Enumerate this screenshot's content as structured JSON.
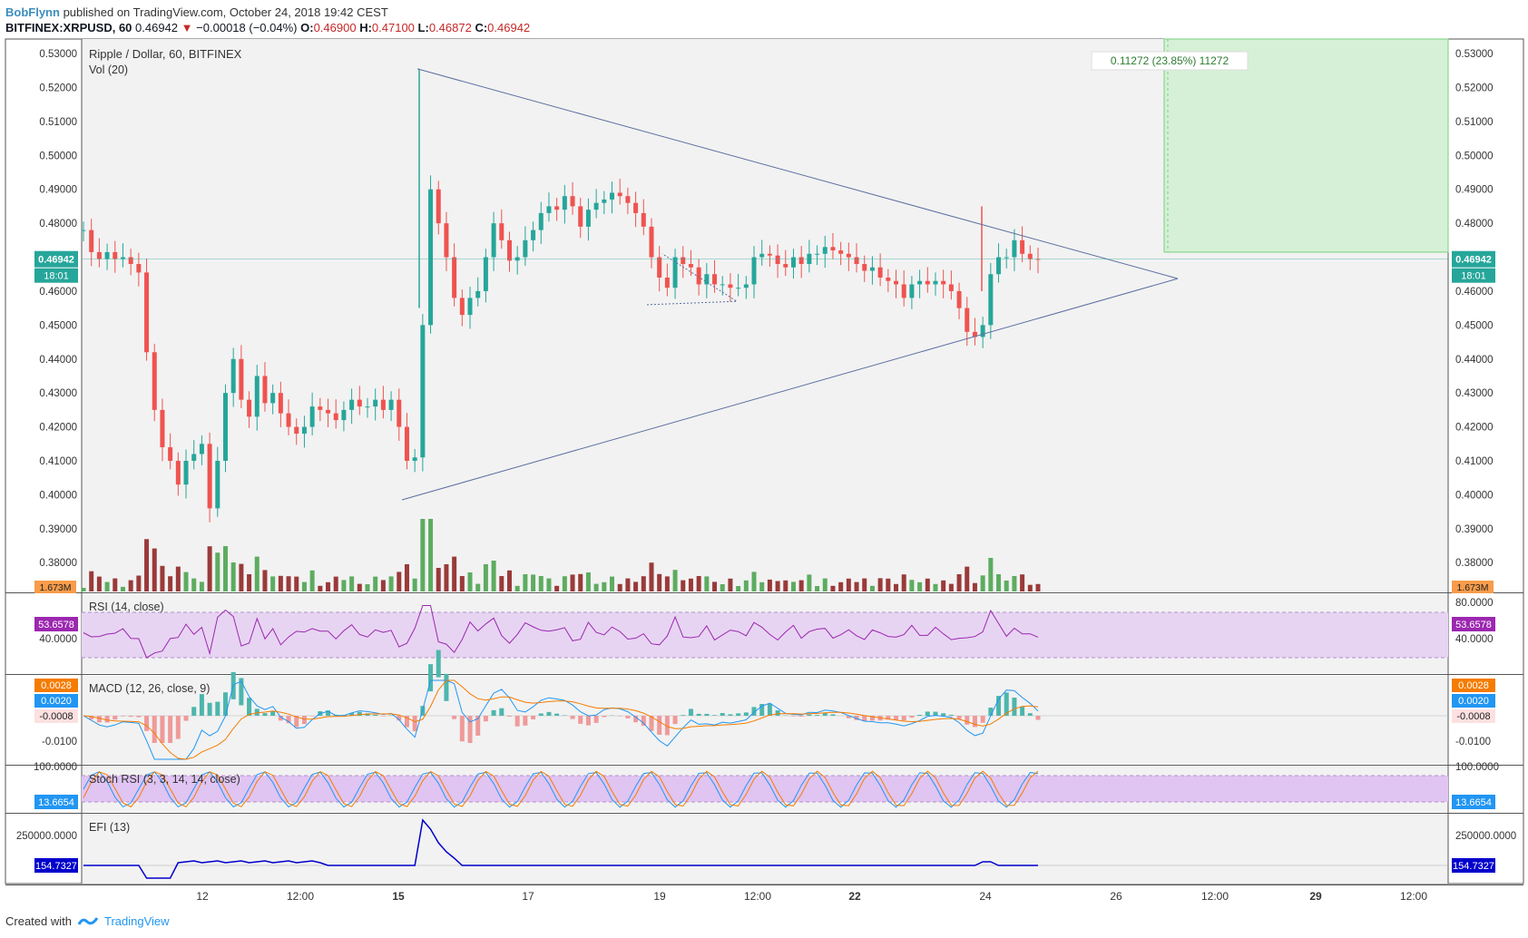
{
  "header": {
    "author": "BobFlynn",
    "published_text": "published on TradingView.com, October 24, 2018 19:42 CEST",
    "symbol": "BITFINEX:XRPUSD, 60",
    "last": "0.46942",
    "change": "−0.00018 (−0.04%)",
    "o_label": "O:",
    "o": "0.46900",
    "h_label": "H:",
    "h": "0.47100",
    "l_label": "L:",
    "l": "0.46872",
    "c_label": "C:",
    "c": "0.46942"
  },
  "footer": {
    "created_with": "Created with",
    "brand": "TradingView"
  },
  "chart_data": {
    "type": "candlestick",
    "title": "Ripple / Dollar, 60, BITFINEX",
    "price_axis": {
      "ylim": [
        0.3715,
        0.5343
      ],
      "ticks": [
        "0.53000",
        "0.52000",
        "0.51000",
        "0.50000",
        "0.49000",
        "0.48000",
        "0.47000",
        "0.46000",
        "0.45000",
        "0.44000",
        "0.43000",
        "0.42000",
        "0.41000",
        "0.40000",
        "0.39000",
        "0.38000"
      ],
      "tick_values": [
        0.53,
        0.52,
        0.51,
        0.5,
        0.49,
        0.48,
        0.47,
        0.46,
        0.45,
        0.44,
        0.43,
        0.42,
        0.41,
        0.4,
        0.39,
        0.38
      ]
    },
    "x_axis": {
      "ticks": [
        "12",
        "12:00",
        "15",
        "17",
        "19",
        "12:00",
        "22",
        "24",
        "26",
        "12:00",
        "29",
        "12:00"
      ],
      "bold_ticks": [
        "15",
        "22",
        "29"
      ]
    },
    "last_price": {
      "value": 0.46942,
      "label": "0.46942",
      "countdown": "18:01",
      "color": "#26a69a"
    },
    "close_series": [
      0.478,
      0.4715,
      0.4695,
      0.4715,
      0.4695,
      0.47,
      0.468,
      0.4655,
      0.442,
      0.425,
      0.414,
      0.41,
      0.403,
      0.41,
      0.412,
      0.415,
      0.396,
      0.41,
      0.43,
      0.44,
      0.428,
      0.423,
      0.435,
      0.427,
      0.43,
      0.424,
      0.42,
      0.418,
      0.42,
      0.426,
      0.425,
      0.424,
      0.422,
      0.425,
      0.428,
      0.426,
      0.426,
      0.428,
      0.425,
      0.428,
      0.42,
      0.41,
      0.411,
      0.45,
      0.49,
      0.48,
      0.47,
      0.458,
      0.453,
      0.458,
      0.46,
      0.47,
      0.48,
      0.475,
      0.469,
      0.47,
      0.475,
      0.478,
      0.483,
      0.485,
      0.484,
      0.488,
      0.485,
      0.479,
      0.484,
      0.486,
      0.487,
      0.489,
      0.488,
      0.486,
      0.483,
      0.479,
      0.47,
      0.464,
      0.461,
      0.47,
      0.468,
      0.467,
      0.462,
      0.465,
      0.462,
      0.462,
      0.461,
      0.461,
      0.462,
      0.47,
      0.471,
      0.4705,
      0.468,
      0.467,
      0.47,
      0.468,
      0.471,
      0.471,
      0.473,
      0.472,
      0.471,
      0.47,
      0.468,
      0.466,
      0.467,
      0.464,
      0.463,
      0.462,
      0.458,
      0.462,
      0.463,
      0.462,
      0.463,
      0.462,
      0.46,
      0.455,
      0.448,
      0.4465,
      0.45,
      0.465,
      0.47,
      0.47,
      0.475,
      0.471,
      0.4695,
      0.4694
    ],
    "vol_label": "Vol (20)",
    "volume_axis_label": "1.673M",
    "measure_box": {
      "label": "0.11272 (23.85%) 11272",
      "price_from": 0.4715,
      "price_to": 0.5343
    },
    "indicators": [
      {
        "name": "RSI (14, close)",
        "value_label": "53.6578",
        "ticks": [
          "40.0000"
        ],
        "upper_tick": "80.0000",
        "color": "#9c27b0",
        "band": [
          30,
          70
        ]
      },
      {
        "name": "MACD (12, 26, close, 9)",
        "value_labels": [
          "0.0028",
          "0.0020",
          "-0.0008"
        ],
        "ticks": [
          "-0.0100"
        ],
        "colors": [
          "#f57c00",
          "#2196f3",
          "#ef5350"
        ]
      },
      {
        "name": "Stoch RSI (3, 3, 14, 14, close)",
        "value_label": "13.6654",
        "ticks": [
          "100.0000"
        ],
        "color": "#2196f3",
        "band": [
          20,
          80
        ]
      },
      {
        "name": "EFI (13)",
        "value_label": "154.7327",
        "ticks": [
          "250000.0000"
        ],
        "color": "#0000cc"
      }
    ]
  }
}
